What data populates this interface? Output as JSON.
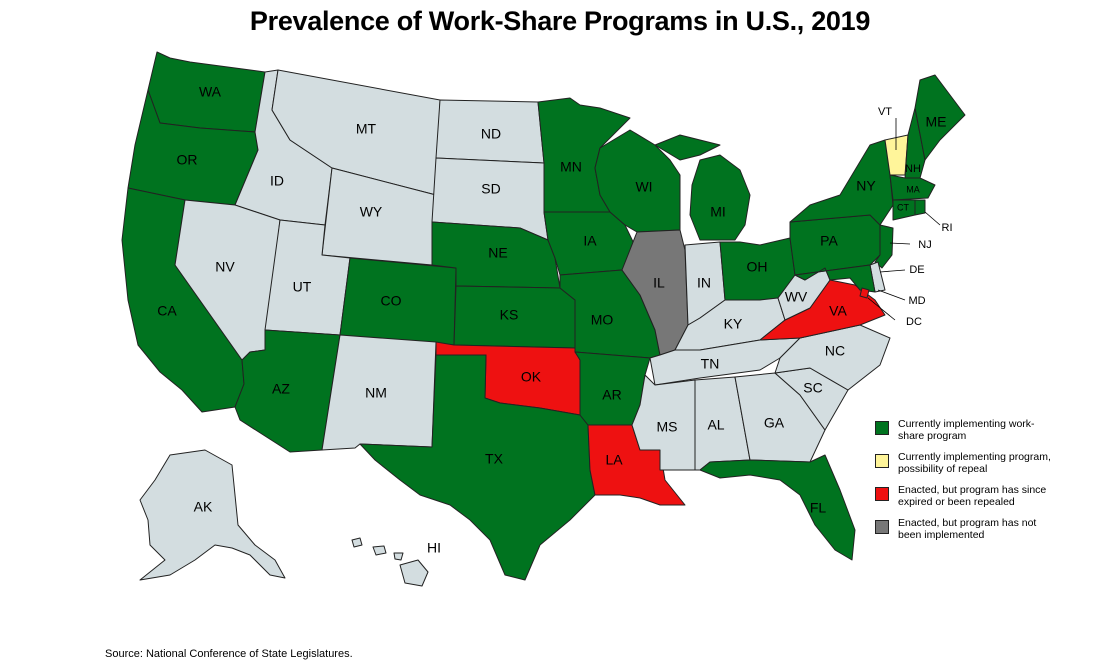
{
  "title": "Prevalence of Work-Share Programs in U.S., 2019",
  "source": "Source: National Conference of State Legislatures.",
  "colors": {
    "implementing": "#00731f",
    "repeal_possible": "#fff59a",
    "expired": "#ee1111",
    "not_implemented": "#777777",
    "none": "#d3dde0"
  },
  "legend": [
    {
      "key": "implementing",
      "label": "Currently implementing work-share program"
    },
    {
      "key": "repeal_possible",
      "label": "Currently implementing program, possibility of repeal"
    },
    {
      "key": "expired",
      "label": "Enacted, but program has since expired or been repealed"
    },
    {
      "key": "not_implemented",
      "label": "Enacted, but program has not been implemented"
    }
  ],
  "states": {
    "WA": "implementing",
    "OR": "implementing",
    "CA": "implementing",
    "ID": "none",
    "NV": "none",
    "MT": "none",
    "WY": "none",
    "UT": "none",
    "AZ": "implementing",
    "CO": "implementing",
    "NM": "none",
    "ND": "none",
    "SD": "none",
    "NE": "implementing",
    "KS": "implementing",
    "OK": "expired",
    "TX": "implementing",
    "MN": "implementing",
    "IA": "implementing",
    "MO": "implementing",
    "AR": "implementing",
    "LA": "expired",
    "WI": "implementing",
    "IL": "not_implemented",
    "MI": "implementing",
    "IN": "none",
    "OH": "implementing",
    "KY": "none",
    "TN": "none",
    "MS": "none",
    "AL": "none",
    "GA": "none",
    "FL": "implementing",
    "SC": "none",
    "NC": "none",
    "VA": "expired",
    "WV": "none",
    "PA": "implementing",
    "NY": "implementing",
    "VT": "repeal_possible",
    "NH": "implementing",
    "ME": "implementing",
    "MA": "implementing",
    "CT": "implementing",
    "RI": "implementing",
    "NJ": "implementing",
    "DE": "none",
    "MD": "implementing",
    "DC": "expired",
    "AK": "none",
    "HI": "none"
  },
  "labels": {
    "WA": "WA",
    "OR": "OR",
    "CA": "CA",
    "ID": "ID",
    "NV": "NV",
    "MT": "MT",
    "WY": "WY",
    "UT": "UT",
    "AZ": "AZ",
    "CO": "CO",
    "NM": "NM",
    "ND": "ND",
    "SD": "SD",
    "NE": "NE",
    "KS": "KS",
    "OK": "OK",
    "TX": "TX",
    "MN": "MN",
    "IA": "IA",
    "MO": "MO",
    "AR": "AR",
    "LA": "LA",
    "WI": "WI",
    "IL": "IL",
    "MI": "MI",
    "IN": "IN",
    "OH": "OH",
    "KY": "KY",
    "TN": "TN",
    "MS": "MS",
    "AL": "AL",
    "GA": "GA",
    "FL": "FL",
    "SC": "SC",
    "NC": "NC",
    "VA": "VA",
    "WV": "WV",
    "PA": "PA",
    "NY": "NY",
    "VT": "VT",
    "NH": "NH",
    "ME": "ME",
    "MA": "MA",
    "CT": "CT",
    "RI": "RI",
    "NJ": "NJ",
    "DE": "DE",
    "MD": "MD",
    "DC": "DC",
    "AK": "AK",
    "HI": "HI"
  }
}
